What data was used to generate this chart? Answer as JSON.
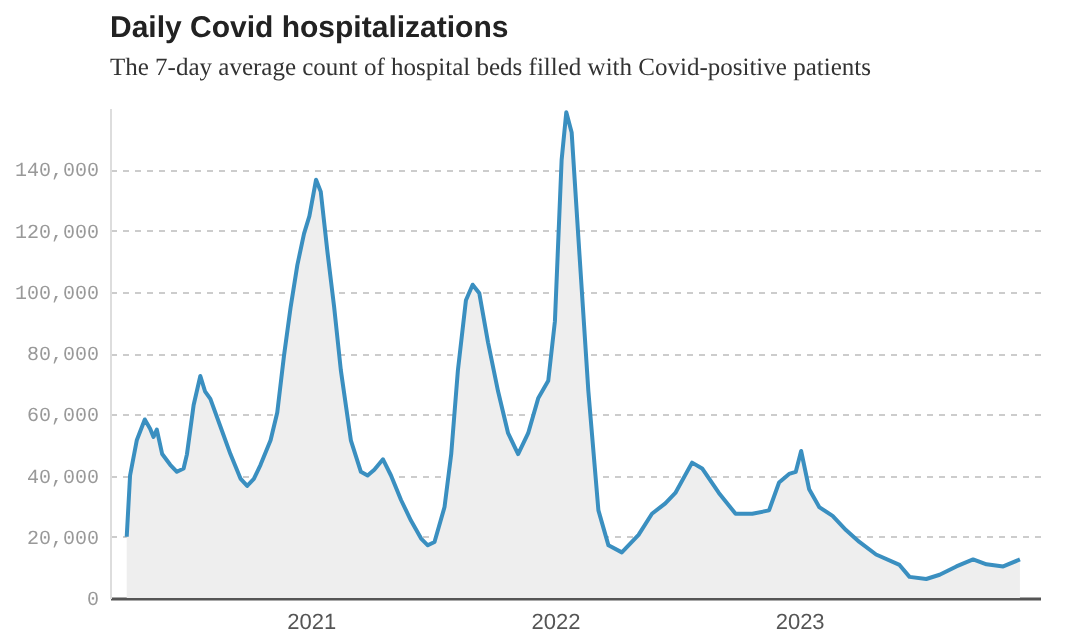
{
  "chart_data": {
    "type": "area",
    "title": "Daily Covid hospitalizations",
    "subtitle": "The 7-day average count of hospital beds filled with Covid-positive patients",
    "x": [
      "2020-04-01",
      "2020-04-06",
      "2020-04-16",
      "2020-04-28",
      "2020-05-06",
      "2020-05-11",
      "2020-05-16",
      "2020-05-24",
      "2020-06-05",
      "2020-06-15",
      "2020-06-25",
      "2020-06-30",
      "2020-07-10",
      "2020-07-20",
      "2020-07-27",
      "2020-08-04",
      "2020-08-19",
      "2020-09-03",
      "2020-09-18",
      "2020-09-28",
      "2020-10-08",
      "2020-10-18",
      "2020-11-02",
      "2020-11-12",
      "2020-11-22",
      "2020-12-02",
      "2020-12-12",
      "2020-12-22",
      "2020-12-30",
      "2021-01-09",
      "2021-01-16",
      "2021-01-26",
      "2021-02-05",
      "2021-02-15",
      "2021-03-02",
      "2021-03-17",
      "2021-03-27",
      "2021-04-06",
      "2021-04-19",
      "2021-05-01",
      "2021-05-16",
      "2021-05-31",
      "2021-06-15",
      "2021-06-25",
      "2021-07-05",
      "2021-07-20",
      "2021-07-30",
      "2021-08-09",
      "2021-08-21",
      "2021-08-31",
      "2021-09-10",
      "2021-09-23",
      "2021-10-08",
      "2021-10-23",
      "2021-11-07",
      "2021-11-22",
      "2021-12-07",
      "2021-12-22",
      "2022-01-01",
      "2022-01-11",
      "2022-01-18",
      "2022-01-26",
      "2022-02-05",
      "2022-02-20",
      "2022-03-07",
      "2022-03-22",
      "2022-04-11",
      "2022-05-06",
      "2022-05-26",
      "2022-06-15",
      "2022-06-30",
      "2022-07-25",
      "2022-08-09",
      "2022-09-03",
      "2022-09-28",
      "2022-10-23",
      "2022-11-17",
      "2022-12-02",
      "2022-12-17",
      "2022-12-27",
      "2023-01-04",
      "2023-01-16",
      "2023-01-31",
      "2023-02-20",
      "2023-03-12",
      "2023-04-01",
      "2023-04-26",
      "2023-05-31",
      "2023-06-15",
      "2023-07-10",
      "2023-07-30",
      "2023-08-24",
      "2023-09-18",
      "2023-10-08",
      "2023-11-02",
      "2023-11-27"
    ],
    "series": [
      {
        "color": "#3a8fc0",
        "values": [
          20000,
          40000,
          51500,
          58300,
          55300,
          52600,
          55000,
          47000,
          43500,
          41200,
          42300,
          46900,
          63000,
          72500,
          67500,
          65000,
          56000,
          47000,
          39000,
          36600,
          38900,
          43500,
          51500,
          60600,
          79000,
          95000,
          108700,
          119000,
          124700,
          136600,
          132700,
          113000,
          95000,
          74400,
          51500,
          41200,
          40000,
          41900,
          45300,
          40000,
          32000,
          25200,
          19400,
          17200,
          18300,
          29700,
          47000,
          74400,
          97200,
          102300,
          99500,
          83500,
          67500,
          53800,
          47000,
          53800,
          65200,
          70900,
          90400,
          143000,
          158600,
          152000,
          117800,
          67500,
          28600,
          17200,
          14900,
          20600,
          27500,
          30900,
          34300,
          44200,
          42300,
          34300,
          27500,
          27500,
          28600,
          37700,
          40500,
          41200,
          48000,
          35500,
          29700,
          26800,
          22200,
          18300,
          14200,
          10800,
          6900,
          6200,
          7600,
          10300,
          12600,
          11000,
          10300,
          12600
        ]
      }
    ],
    "xlim": [
      "2020-03-07",
      "2023-12-27"
    ],
    "xticks": [
      "2021",
      "2022",
      "2023"
    ],
    "ylim": [
      0,
      160000
    ],
    "yticks": [
      0,
      {
        "value": 20000,
        "label": "20,000"
      },
      {
        "value": 40000,
        "label": "40,000"
      },
      {
        "value": 60000,
        "label": "60,000"
      },
      {
        "value": 80000,
        "label": "80,000"
      },
      {
        "value": 100000,
        "label": "100,000"
      },
      {
        "value": 120000,
        "label": "120,000"
      },
      {
        "value": 140000,
        "label": "140,000"
      }
    ],
    "grid": "y",
    "marker": "none",
    "line_style": "solid"
  }
}
